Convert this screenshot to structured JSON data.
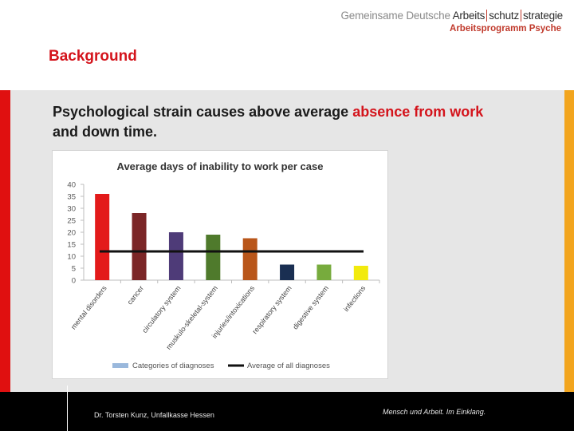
{
  "header": {
    "logo_part1": "Gemeinsame Deutsche",
    "logo_part2": "Arbeits",
    "logo_part3": "schutz",
    "logo_part4": "strategie",
    "logo_sub": "Arbeitsprogramm Psyche"
  },
  "slide": {
    "section_title": "Background",
    "subtitle_part1": "Psychological strain causes above average ",
    "subtitle_highlight": "absence from work",
    "subtitle_part2": "and down time."
  },
  "chart_data": {
    "type": "bar",
    "title": "Average days of inability to work per case",
    "categories": [
      "mental disorders",
      "cancer",
      "circulatory system",
      "muskulo-skeletal-system",
      "injuries/intoxications",
      "respiratory system",
      "digestive system",
      "infections"
    ],
    "values": [
      36,
      28,
      20,
      19,
      17.5,
      6.5,
      6.5,
      6
    ],
    "bar_colors": [
      "#e31a1a",
      "#7b2627",
      "#4e3b78",
      "#4f7a2c",
      "#b9561a",
      "#1a2f52",
      "#77ab3d",
      "#f2ea0d"
    ],
    "average": 12,
    "ylim": [
      0,
      40
    ],
    "yticks": [
      0,
      5,
      10,
      15,
      20,
      25,
      30,
      35,
      40
    ],
    "legend": [
      {
        "label": "Categories of diagnoses",
        "color": "#9ab8dc",
        "kind": "box"
      },
      {
        "label": "Average of all diagnoses",
        "color": "#111111",
        "kind": "line"
      }
    ],
    "legend_position": "bottom",
    "grid": false
  },
  "footer": {
    "author": "Dr. Torsten Kunz, Unfallkasse Hessen",
    "slogan": "Mensch und Arbeit. Im Einklang."
  }
}
